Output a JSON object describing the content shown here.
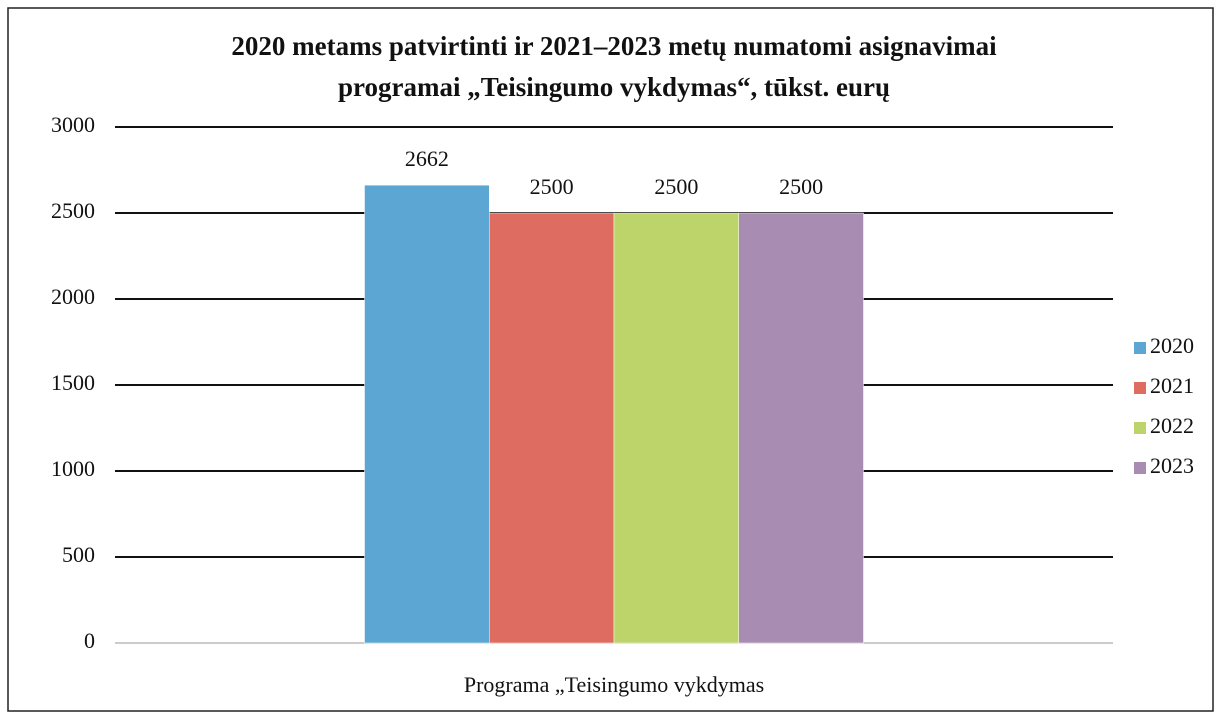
{
  "chart_data": {
    "type": "bar",
    "title": [
      "2020 metams patvirtinti ir 2021–2023 metų numatomi asignavimai",
      "programai „Teisingumo vykdymas“, tūkst. eurų"
    ],
    "categories": [
      "Programa „Teisingumo vykdymas"
    ],
    "series": [
      {
        "name": "2020",
        "color": "#5ba6d2",
        "values": [
          2662
        ]
      },
      {
        "name": "2021",
        "color": "#df6c61",
        "values": [
          2500
        ]
      },
      {
        "name": "2022",
        "color": "#bdd46b",
        "values": [
          2500
        ]
      },
      {
        "name": "2023",
        "color": "#a98cb2",
        "values": [
          2500
        ]
      }
    ],
    "ylim": [
      0,
      3000
    ],
    "yticks": [
      0,
      500,
      1000,
      1500,
      2000,
      2500,
      3000
    ],
    "grid": true,
    "legend": "right"
  }
}
